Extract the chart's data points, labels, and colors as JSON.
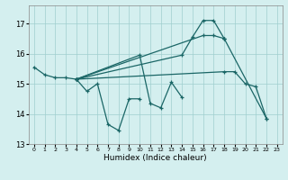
{
  "title": "",
  "xlabel": "Humidex (Indice chaleur)",
  "xlim": [
    -0.5,
    23.5
  ],
  "ylim": [
    13,
    17.6
  ],
  "yticks": [
    13,
    14,
    15,
    16,
    17
  ],
  "xticks": [
    0,
    1,
    2,
    3,
    4,
    5,
    6,
    7,
    8,
    9,
    10,
    11,
    12,
    13,
    14,
    15,
    16,
    17,
    18,
    19,
    20,
    21,
    22,
    23
  ],
  "bg_color": "#d4efef",
  "grid_color": "#9fcece",
  "line_color": "#1a6666",
  "segments": [
    [
      [
        0,
        15.55
      ],
      [
        1,
        15.3
      ],
      [
        2,
        15.2
      ],
      [
        3,
        15.2
      ],
      [
        4,
        15.15
      ]
    ],
    [
      [
        4,
        15.15
      ],
      [
        5,
        14.75
      ],
      [
        6,
        15.0
      ],
      [
        7,
        13.65
      ],
      [
        8,
        13.45
      ],
      [
        9,
        14.5
      ],
      [
        10,
        14.5
      ]
    ],
    [
      [
        4,
        15.15
      ],
      [
        10,
        15.95
      ],
      [
        11,
        14.35
      ],
      [
        12,
        14.2
      ],
      [
        13,
        15.05
      ],
      [
        14,
        14.55
      ]
    ],
    [
      [
        4,
        15.15
      ],
      [
        14,
        15.95
      ],
      [
        15,
        16.55
      ],
      [
        16,
        17.1
      ],
      [
        17,
        17.1
      ],
      [
        18,
        16.5
      ]
    ],
    [
      [
        4,
        15.15
      ],
      [
        16,
        16.6
      ],
      [
        17,
        16.6
      ],
      [
        18,
        16.5
      ]
    ],
    [
      [
        4,
        15.15
      ],
      [
        18,
        15.4
      ],
      [
        19,
        15.4
      ],
      [
        20,
        15.0
      ],
      [
        21,
        14.9
      ],
      [
        22,
        13.85
      ]
    ],
    [
      [
        18,
        16.5
      ],
      [
        22,
        13.85
      ]
    ]
  ]
}
